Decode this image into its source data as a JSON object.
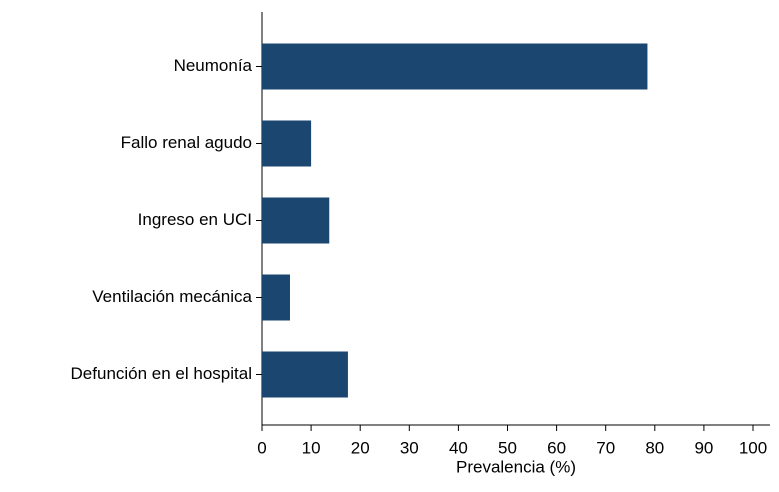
{
  "chart_data": {
    "type": "bar",
    "orientation": "horizontal",
    "xlabel": "Prevalencia (%)",
    "categories": [
      "Neumonía",
      "Fallo renal agudo",
      "Ingreso en UCI",
      "Ventilación mecánica",
      "Defunción en el hospital"
    ],
    "values": [
      78.5,
      10.0,
      13.7,
      5.7,
      17.5
    ],
    "color": "#1a4670",
    "xlim": [
      0,
      100
    ],
    "xticks": [
      0,
      10,
      20,
      30,
      40,
      50,
      60,
      70,
      80,
      90,
      100
    ]
  }
}
